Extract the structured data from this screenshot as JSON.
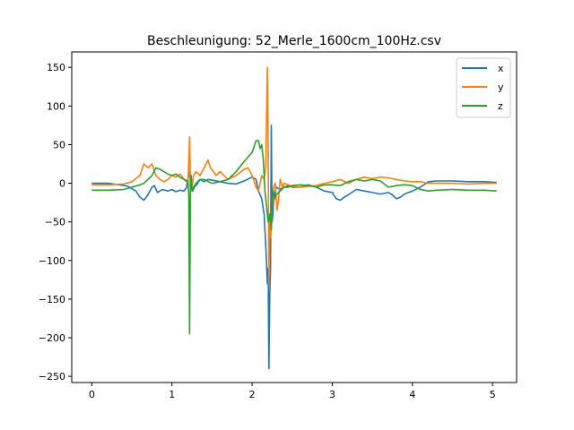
{
  "chart_data": {
    "type": "line",
    "title": "Beschleunigung: 52_Merle_1600cm_100Hz.csv",
    "xlabel": "",
    "ylabel": "",
    "xlim": [
      -0.25,
      5.3
    ],
    "ylim": [
      -258,
      170
    ],
    "xticks": [
      0,
      1,
      2,
      3,
      4,
      5
    ],
    "yticks": [
      -250,
      -200,
      -150,
      -100,
      -50,
      0,
      50,
      100,
      150
    ],
    "ytick_labels": [
      "−250",
      "−200",
      "−150",
      "−100",
      "−50",
      "0",
      "50",
      "100",
      "150"
    ],
    "grid": false,
    "legend_position": "top-right",
    "series": [
      {
        "name": "x",
        "color": "#1f77b4",
        "x": [
          0,
          0.2,
          0.35,
          0.45,
          0.55,
          0.6,
          0.65,
          0.7,
          0.75,
          0.78,
          0.82,
          0.88,
          0.95,
          1.0,
          1.05,
          1.1,
          1.15,
          1.18,
          1.2,
          1.22,
          1.24,
          1.26,
          1.28,
          1.32,
          1.35,
          1.4,
          1.45,
          1.5,
          1.6,
          1.7,
          1.8,
          1.9,
          2.0,
          2.05,
          2.08,
          2.12,
          2.15,
          2.17,
          2.19,
          2.2,
          2.21,
          2.22,
          2.23,
          2.24,
          2.25,
          2.26,
          2.27,
          2.28,
          2.3,
          2.35,
          2.4,
          2.45,
          2.5,
          2.6,
          2.7,
          2.8,
          2.9,
          3.0,
          3.05,
          3.1,
          3.15,
          3.2,
          3.3,
          3.4,
          3.5,
          3.6,
          3.7,
          3.75,
          3.8,
          3.85,
          3.9,
          4.0,
          4.1,
          4.2,
          4.3,
          4.5,
          4.7,
          4.9,
          5.05
        ],
        "y": [
          0,
          0,
          -2,
          -4,
          -10,
          -18,
          -22,
          -15,
          -5,
          -3,
          -12,
          -8,
          -10,
          -8,
          -11,
          -9,
          -10,
          -6,
          5,
          15,
          -8,
          -10,
          -5,
          0,
          5,
          2,
          5,
          4,
          2,
          0,
          -1,
          3,
          8,
          5,
          -10,
          -20,
          -40,
          -80,
          -130,
          -110,
          -240,
          -150,
          -110,
          75,
          -50,
          -40,
          -20,
          -15,
          -5,
          -8,
          -5,
          -3,
          -5,
          -5,
          -2,
          -5,
          -10,
          -12,
          -20,
          -22,
          -18,
          -15,
          -8,
          -10,
          -12,
          -14,
          -12,
          -15,
          -20,
          -18,
          -14,
          -10,
          -5,
          2,
          3,
          3,
          2,
          2,
          1
        ]
      },
      {
        "name": "y",
        "color": "#ff7f0e",
        "x": [
          0,
          0.2,
          0.4,
          0.5,
          0.6,
          0.65,
          0.7,
          0.75,
          0.8,
          0.85,
          0.9,
          0.95,
          1.0,
          1.05,
          1.1,
          1.15,
          1.2,
          1.22,
          1.23,
          1.24,
          1.25,
          1.27,
          1.3,
          1.35,
          1.4,
          1.45,
          1.48,
          1.52,
          1.55,
          1.6,
          1.7,
          1.8,
          1.9,
          1.95,
          2.0,
          2.05,
          2.08,
          2.12,
          2.15,
          2.17,
          2.19,
          2.2,
          2.21,
          2.22,
          2.23,
          2.24,
          2.25,
          2.27,
          2.29,
          2.31,
          2.33,
          2.35,
          2.38,
          2.4,
          2.45,
          2.5,
          2.6,
          2.7,
          2.8,
          2.9,
          3.0,
          3.1,
          3.2,
          3.3,
          3.4,
          3.5,
          3.6,
          3.7,
          3.8,
          3.9,
          4.0,
          4.1,
          4.2,
          4.3,
          4.5,
          4.7,
          4.9,
          5.05
        ],
        "y": [
          -2,
          -2,
          -1,
          2,
          10,
          25,
          20,
          25,
          10,
          5,
          2,
          5,
          10,
          8,
          12,
          5,
          0,
          60,
          -10,
          5,
          -5,
          10,
          15,
          10,
          20,
          30,
          20,
          15,
          10,
          15,
          5,
          10,
          18,
          20,
          10,
          -5,
          -10,
          10,
          5,
          20,
          150,
          50,
          -130,
          -40,
          -70,
          -60,
          -30,
          -5,
          0,
          -35,
          -20,
          5,
          -5,
          0,
          -2,
          -4,
          -5,
          -4,
          -3,
          0,
          2,
          5,
          0,
          5,
          8,
          6,
          8,
          7,
          5,
          3,
          2,
          2,
          0,
          0,
          0,
          -1,
          0,
          0
        ]
      },
      {
        "name": "z",
        "color": "#2ca02c",
        "x": [
          0,
          0.2,
          0.4,
          0.5,
          0.6,
          0.65,
          0.7,
          0.75,
          0.8,
          0.85,
          0.9,
          0.95,
          1.0,
          1.05,
          1.1,
          1.15,
          1.2,
          1.21,
          1.22,
          1.23,
          1.24,
          1.25,
          1.27,
          1.3,
          1.35,
          1.4,
          1.5,
          1.6,
          1.7,
          1.8,
          1.9,
          2.0,
          2.05,
          2.08,
          2.1,
          2.12,
          2.14,
          2.16,
          2.18,
          2.2,
          2.22,
          2.24,
          2.25,
          2.26,
          2.27,
          2.28,
          2.3,
          2.35,
          2.4,
          2.45,
          2.5,
          2.6,
          2.7,
          2.8,
          2.9,
          3.0,
          3.1,
          3.2,
          3.3,
          3.4,
          3.5,
          3.6,
          3.7,
          3.8,
          3.9,
          4.0,
          4.1,
          4.2,
          4.3,
          4.5,
          4.7,
          4.9,
          5.05
        ],
        "y": [
          -9,
          -9,
          -8,
          -5,
          -2,
          0,
          5,
          10,
          20,
          18,
          15,
          12,
          10,
          12,
          8,
          5,
          3,
          -15,
          -195,
          -5,
          10,
          -10,
          -5,
          0,
          5,
          5,
          0,
          2,
          5,
          15,
          28,
          40,
          55,
          55,
          45,
          50,
          30,
          -10,
          -30,
          -50,
          -40,
          -60,
          -20,
          -10,
          -15,
          -20,
          -15,
          -10,
          -5,
          -5,
          -3,
          -2,
          -3,
          -5,
          -2,
          -2,
          -3,
          2,
          5,
          3,
          5,
          3,
          -5,
          -3,
          -2,
          -3,
          -8,
          -10,
          -9,
          -8,
          -9,
          -9,
          -10
        ]
      }
    ]
  }
}
